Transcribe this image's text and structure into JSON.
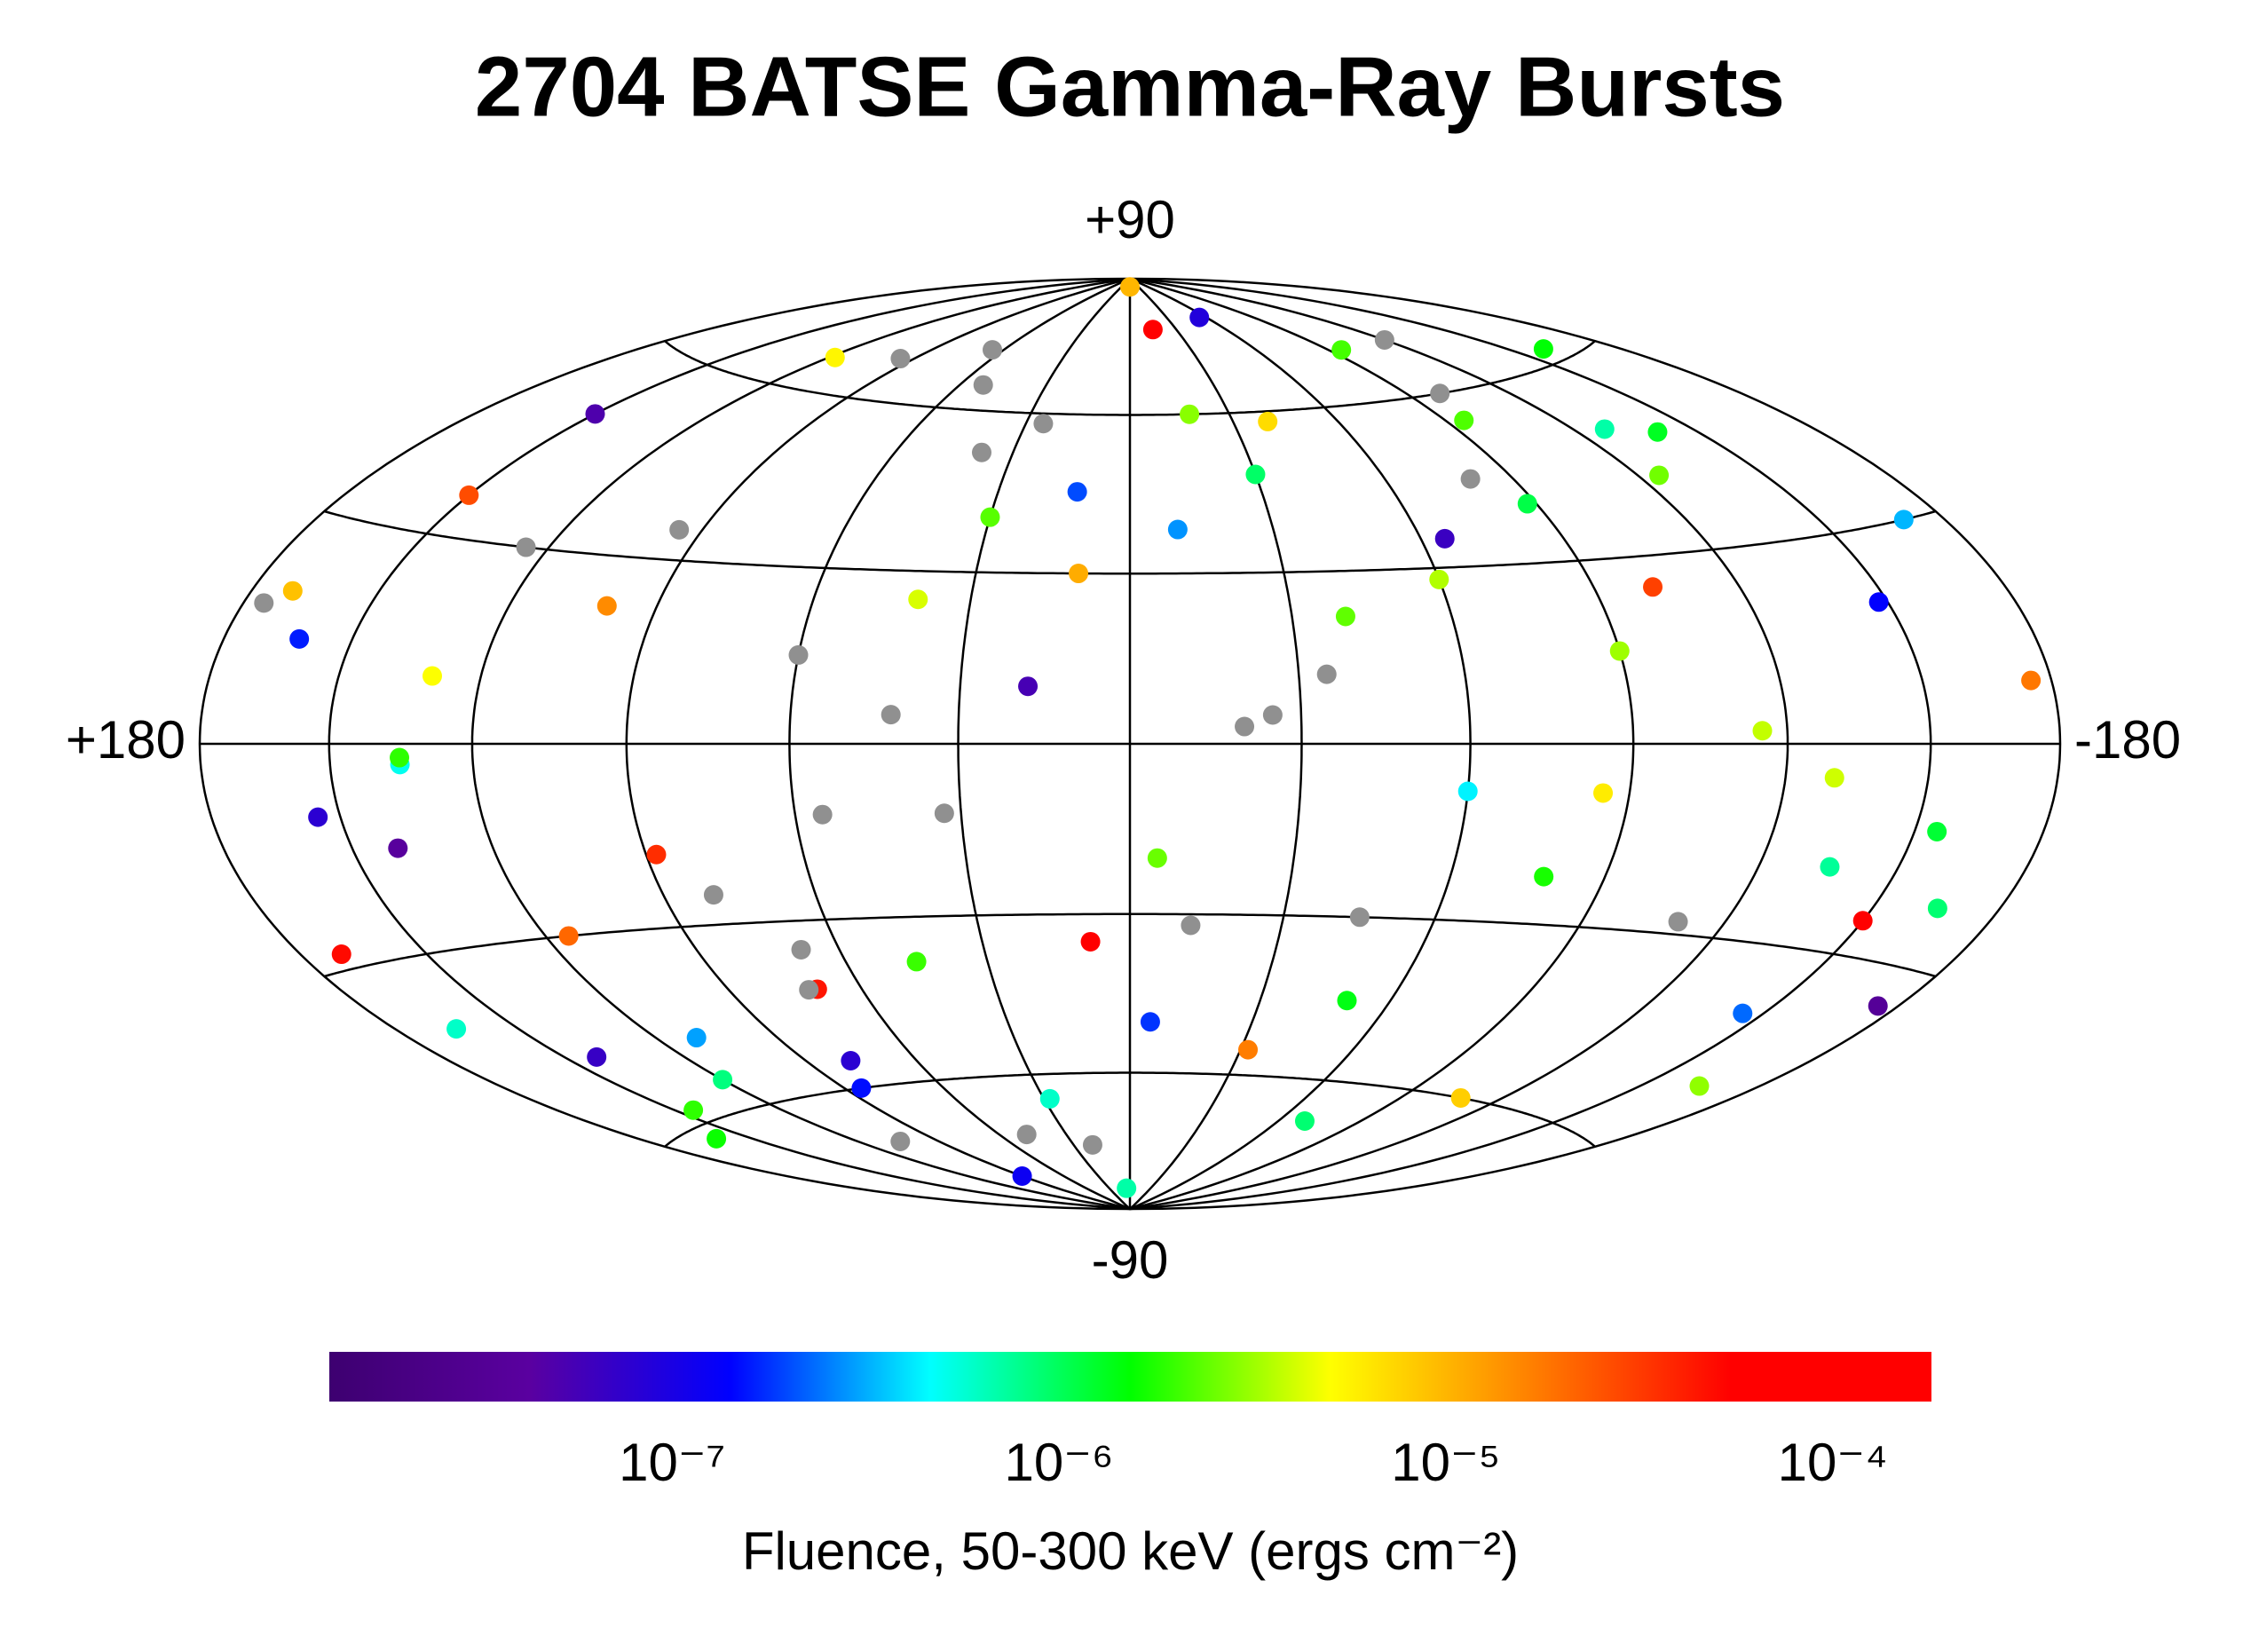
{
  "chart_data": {
    "type": "scatter",
    "projection": "hammer-aitoff",
    "title": "2704 BATSE Gamma-Ray Bursts",
    "xticks": [
      {
        "value": 180,
        "label": "+180"
      },
      {
        "value": -180,
        "label": "-180"
      }
    ],
    "yticks": [
      {
        "value": 90,
        "label": "+90"
      },
      {
        "value": -90,
        "label": "-90"
      }
    ],
    "xlim": [
      180,
      -180
    ],
    "ylim": [
      -90,
      90
    ],
    "grid": true,
    "meridians": [
      -180,
      -150,
      -120,
      -90,
      -60,
      -30,
      0,
      30,
      60,
      90,
      120,
      150,
      180
    ],
    "parallels": [
      -60,
      -30,
      0,
      30,
      60
    ],
    "missing_color": "#909090",
    "colormap": [
      "#3d0070",
      "#5a00a0",
      "#0000ff",
      "#00ffff",
      "#00ff00",
      "#ffff00",
      "#ff8000",
      "#ff0000",
      "#ff0000"
    ],
    "colorbar": {
      "label": "Fluence, 50-300 keV (ergs cm⁻²)",
      "log": true,
      "lim": [
        1.3e-08,
        0.00018
      ],
      "ticks": [
        {
          "value": 1e-07,
          "label": "10⁻⁷"
        },
        {
          "value": 1e-06,
          "label": "10⁻⁶"
        },
        {
          "value": 1e-05,
          "label": "10⁻⁵"
        },
        {
          "value": 0.0001,
          "label": "10⁻⁴"
        }
      ]
    },
    "x": [
      12,
      -45,
      130,
      -160,
      78,
      -102,
      33,
      165,
      -15,
      -130,
      95,
      -70,
      150,
      -5,
      60,
      -175,
      110,
      -40,
      20,
      -88,
      140,
      -120,
      45,
      -150,
      170,
      -25,
      85,
      -60,
      5,
      125,
      -95,
      155,
      -35,
      70,
      -140,
      28,
      -110,
      100,
      -10,
      -165,
      52,
      135,
      -78,
      -55,
      175,
      8,
      -125,
      90,
      -20,
      145,
      -85,
      38,
      -170,
      115,
      -50,
      65,
      -135,
      18,
      160,
      -100,
      40,
      -145,
      105,
      -30,
      0,
      -115,
      80,
      -65,
      150,
      -155,
      25,
      120,
      -90,
      55,
      -5,
      170,
      -40,
      95,
      -175,
      10,
      -128,
      72,
      135,
      -60,
      -18,
      48,
      -108,
      162,
      -80,
      30,
      -148,
      88,
      -12,
      118,
      -165,
      42,
      -95,
      142,
      -32,
      68
    ],
    "y": [
      45,
      -30,
      10,
      62,
      -55,
      25,
      -12,
      -40,
      78,
      -5,
      35,
      -68,
      50,
      -20,
      15,
      8,
      -48,
      58,
      -75,
      40,
      -15,
      70,
      -38,
      -25,
      20,
      5,
      -60,
      28,
      -85,
      30,
      55,
      -10,
      12,
      -42,
      48,
      -65,
      -28,
      22,
      38,
      -50,
      65,
      -3,
      -22,
      80,
      18,
      -35,
      42,
      -80,
      3,
      -58,
      -8,
      52,
      30,
      -30,
      -45,
      72,
      -18,
      10,
      -62,
      60,
      25,
      -40,
      -70,
      48,
      88,
      2,
      -25,
      35,
      36,
      -12,
      58,
      -55,
      15,
      -12,
      -50,
      -28,
      22,
      68,
      -35,
      30,
      50,
      -42,
      -2,
      -8,
      60,
      -72,
      -60,
      14,
      45,
      40,
      20,
      -18,
      -32,
      66,
      -22,
      5,
      70,
      -48,
      -55,
      -35
    ],
    "fluence": [
      2e-07,
      null,
      5e-06,
      1.5e-06,
      8e-08,
      3e-05,
      null,
      6e-07,
      0.00012,
      4e-06,
      null,
      9e-07,
      5e-08,
      2.5e-06,
      null,
      1.8e-05,
      3e-07,
      7e-06,
      null,
      1.1e-06,
      4e-08,
      null,
      2e-06,
      6e-05,
      9e-06,
      null,
      1.5e-07,
      3.5e-06,
      7e-07,
      null,
      2.2e-06,
      8e-08,
      null,
      4.5e-05,
      1.3e-06,
      6e-07,
      null,
      1.5e-05,
      2.8e-07,
      3e-06,
      null,
      5e-07,
      1.7e-06,
      9e-08,
      null,
      8e-05,
      2.6e-06,
      1.2e-07,
      null,
      1.9e-06,
      6e-06,
      null,
      3.3e-07,
      2.1e-05,
      1.4e-06,
      null,
      7.5e-07,
      5.5e-08,
      1.6e-06,
      null,
      4.2e-06,
      2.3e-07,
      null,
      9.5e-07,
      1e-05,
      3.8e-06,
      null,
      6.5e-08,
      2.7e-05,
      1.2e-06,
      null,
      8.5e-07,
      3.2e-06,
      null,
      1.8e-07,
      5e-05,
      2.4e-06,
      null,
      3.5e-08,
      1.1e-05,
      7e-07,
      null,
      1.9e-06,
      4.4e-07,
      2.9e-06,
      null,
      8e-06,
      1.6e-07,
      null,
      2.3e-06,
      1.4e-07,
      3.6e-05,
      null,
      5.5e-06,
      9e-07,
      null,
      2.1e-06,
      6.8e-08,
      1.7e-05,
      null
    ]
  }
}
